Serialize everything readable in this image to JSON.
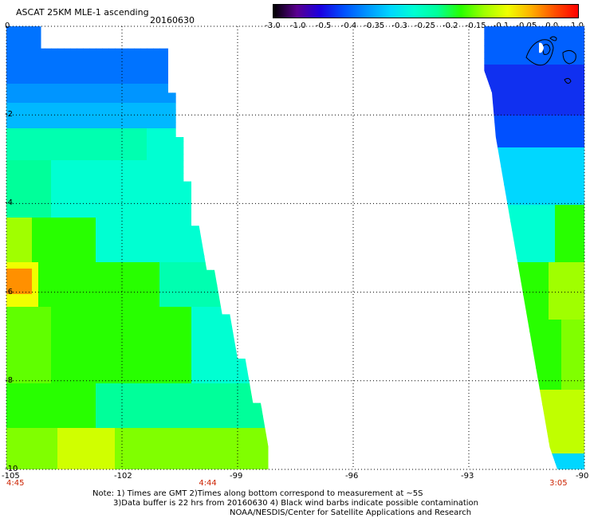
{
  "header": {
    "title": "ASCAT 25KM MLE-1 ascending",
    "date": "20160630"
  },
  "colorbar": {
    "ticks": [
      "-3.0",
      "-1.0",
      "-0.5",
      "-0.4",
      "-0.35",
      "-0.3",
      "-0.25",
      "-0.2",
      "-0.15",
      "-0.1",
      "-0.05",
      "0.0",
      "1.0"
    ],
    "colors": [
      "#000000",
      "#5a0090",
      "#1a00e0",
      "#0050ff",
      "#0095ff",
      "#00d7ff",
      "#00ffd2",
      "#00ff9a",
      "#28ff00",
      "#a0ff00",
      "#f0ff00",
      "#ffb000",
      "#ff5000",
      "#ff0000"
    ]
  },
  "axes": {
    "lat_labels": [
      "0",
      "-2",
      "-4",
      "-6",
      "-8",
      "-10"
    ],
    "lon_labels": [
      "-105",
      "-102",
      "-99",
      "-96",
      "-93",
      "-90"
    ],
    "time_labels": [
      {
        "text": "4:45",
        "lon": -105
      },
      {
        "text": "4:44",
        "lon": -99.8
      },
      {
        "text": "3:05",
        "lon": -90.7
      }
    ]
  },
  "map_data": {
    "lon_range": [
      -105,
      -90
    ],
    "lat_range": [
      -10,
      0
    ],
    "grid_lons": [
      -102,
      -99,
      -96,
      -93
    ],
    "grid_lats": [
      -2,
      -4,
      -6,
      -8
    ],
    "west_swath_edge": [
      [
        -104.1,
        0
      ],
      [
        -104.1,
        -0.5
      ],
      [
        -100.8,
        -0.5
      ],
      [
        -100.8,
        -1.5
      ],
      [
        -100.6,
        -1.5
      ],
      [
        -100.6,
        -2.5
      ],
      [
        -100.4,
        -2.5
      ],
      [
        -100.4,
        -3.5
      ],
      [
        -100.2,
        -3.5
      ],
      [
        -100.2,
        -4.5
      ],
      [
        -100.0,
        -4.5
      ],
      [
        -99.8,
        -5.5
      ],
      [
        -99.6,
        -5.5
      ],
      [
        -99.4,
        -6.5
      ],
      [
        -99.2,
        -6.5
      ],
      [
        -99.0,
        -7.5
      ],
      [
        -98.8,
        -7.5
      ],
      [
        -98.6,
        -8.5
      ],
      [
        -98.4,
        -8.5
      ],
      [
        -98.2,
        -9.5
      ],
      [
        -98.0,
        -9.5
      ],
      [
        -98.0,
        -10
      ]
    ],
    "east_swath_edge": [
      [
        -92.6,
        0
      ],
      [
        -92.6,
        -1.0
      ],
      [
        -92.4,
        -1.5
      ],
      [
        -92.3,
        -2.5
      ],
      [
        -92.1,
        -3.5
      ],
      [
        -91.9,
        -4.5
      ],
      [
        -91.7,
        -5.5
      ],
      [
        -91.5,
        -6.5
      ],
      [
        -91.3,
        -7.5
      ],
      [
        -91.1,
        -8.5
      ],
      [
        -90.9,
        -9.5
      ],
      [
        -90.7,
        -10
      ]
    ],
    "values_description": "wind anomaly field"
  },
  "notes": {
    "line1": "Note: 1) Times are GMT 2)Times along bottom correspond to measurement at ~5S",
    "line2": "3)Data buffer is 22 hrs from 20160630 4) Black wind barbs indicate possible contamination",
    "line3": "NOAA/NESDIS/Center for Satellite Applications and Research"
  }
}
